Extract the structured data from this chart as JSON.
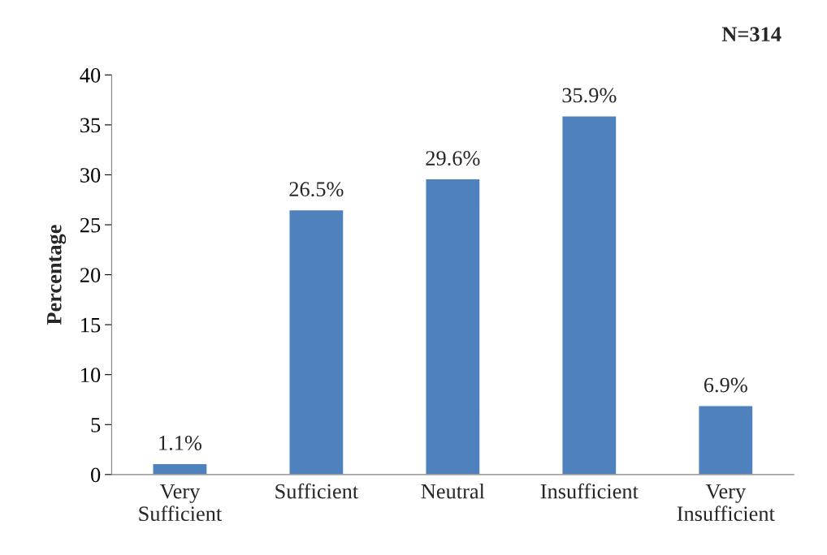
{
  "chart_data": {
    "type": "bar",
    "ylabel": "Percentage",
    "categories": [
      "Very\nSufficient",
      "Sufficient",
      "Neutral",
      "Insufficient",
      "Very\nInsufficient"
    ],
    "values": [
      1.1,
      26.5,
      29.6,
      35.9,
      6.9
    ],
    "value_labels": [
      "1.1%",
      "26.5%",
      "29.6%",
      "35.9%",
      "6.9%"
    ],
    "color": "#4f81bd",
    "ylim": [
      0,
      40
    ],
    "yticks": [
      0,
      5,
      10,
      15,
      20,
      25,
      30,
      35,
      40
    ],
    "annotations": [
      "N=314"
    ]
  }
}
